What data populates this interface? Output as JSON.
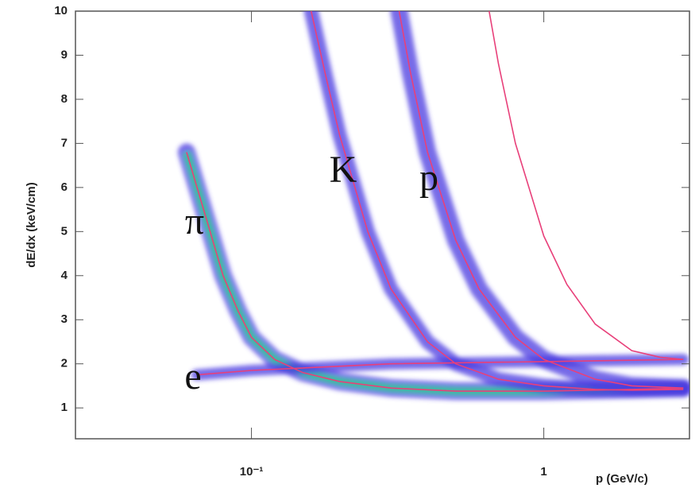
{
  "chart_data": {
    "type": "line",
    "xlabel": "p  (GeV/c)",
    "ylabel": "dE/dx  (keV/cm)",
    "log_x": true,
    "xlim": [
      0.025,
      3.15
    ],
    "ylim": [
      0.3,
      10
    ],
    "xticks": [
      {
        "value": 0.1,
        "label": "10⁻¹"
      },
      1
    ],
    "yticks": [
      1,
      2,
      3,
      4,
      5,
      6,
      7,
      8,
      9,
      10
    ],
    "band_color": "#4a3ae0",
    "core_color": "#2fd08a",
    "series": [
      {
        "name": "π",
        "color": "#e8407a",
        "x": [
          0.06,
          0.07,
          0.08,
          0.09,
          0.1,
          0.12,
          0.15,
          0.2,
          0.3,
          0.5,
          1,
          2,
          3
        ],
        "values": [
          6.8,
          5.3,
          4.0,
          3.2,
          2.6,
          2.1,
          1.8,
          1.6,
          1.45,
          1.38,
          1.38,
          1.42,
          1.45
        ]
      },
      {
        "name": "K",
        "color": "#e8407a",
        "x": [
          0.16,
          0.18,
          0.2,
          0.25,
          0.3,
          0.4,
          0.5,
          0.7,
          1,
          1.5,
          2,
          3
        ],
        "values": [
          10,
          8.5,
          7.2,
          5.0,
          3.7,
          2.5,
          2.0,
          1.65,
          1.5,
          1.42,
          1.4,
          1.42
        ]
      },
      {
        "name": "p",
        "color": "#e8407a",
        "x": [
          0.32,
          0.35,
          0.4,
          0.5,
          0.6,
          0.8,
          1,
          1.5,
          2,
          3
        ],
        "values": [
          10,
          8.6,
          6.8,
          4.8,
          3.7,
          2.6,
          2.1,
          1.65,
          1.5,
          1.45
        ]
      },
      {
        "name": "e",
        "color": "#e8407a",
        "x": [
          0.065,
          0.1,
          0.3,
          1,
          3
        ],
        "values": [
          1.75,
          1.85,
          2.0,
          2.05,
          2.1
        ]
      },
      {
        "color": "#e8407a",
        "x": [
          0.65,
          0.7,
          0.8,
          1,
          1.2,
          1.5,
          2,
          2.5,
          3
        ],
        "values": [
          10,
          8.8,
          7.0,
          4.9,
          3.8,
          2.9,
          2.3,
          2.15,
          2.1
        ]
      }
    ]
  }
}
